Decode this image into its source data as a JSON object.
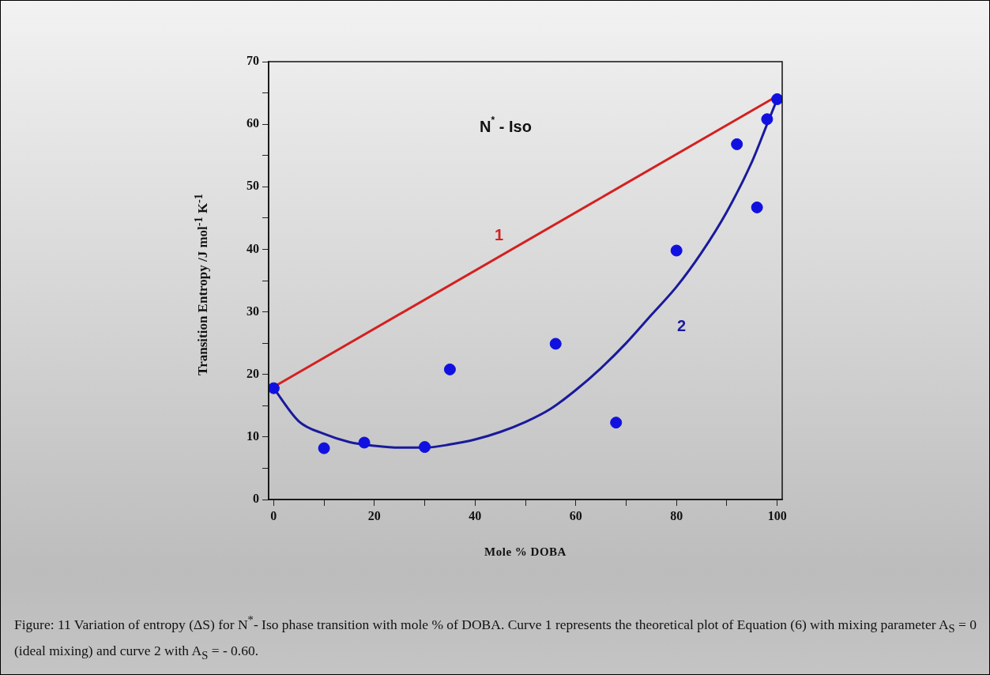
{
  "chart_data": {
    "type": "scatter",
    "xlabel": "Mole % DOBA",
    "ylabel": "Transition Entropy /J mol$^{-1}$ K$^{-1}$",
    "xlim": [
      -1,
      101
    ],
    "xticks": [
      0,
      {
        "value": 10,
        "label": null
      },
      20,
      {
        "value": 30,
        "label": null
      },
      40,
      {
        "value": 50,
        "label": null
      },
      60,
      {
        "value": 70,
        "label": null
      },
      80,
      {
        "value": 90,
        "label": null
      },
      100
    ],
    "ylim": [
      0,
      70
    ],
    "yticks": [
      0,
      {
        "value": 5,
        "label": null
      },
      10,
      {
        "value": 15,
        "label": null
      },
      20,
      {
        "value": 25,
        "label": null
      },
      30,
      {
        "value": 35,
        "label": null
      },
      40,
      {
        "value": 45,
        "label": null
      },
      50,
      {
        "value": 55,
        "label": null
      },
      60,
      {
        "value": 65,
        "label": null
      },
      70
    ],
    "grid": false,
    "legend": false,
    "series": [
      {
        "type": "line",
        "name": "1",
        "color": "#d42020",
        "marker": "none",
        "line_style": "solid",
        "x": [
          0,
          100
        ],
        "values": [
          18,
          64.5
        ]
      },
      {
        "type": "line",
        "name": "2",
        "color": "#1a1a9c",
        "marker": "none",
        "line_style": "solid",
        "x": [
          0,
          5,
          10,
          15,
          20,
          25,
          30,
          35,
          40,
          45,
          50,
          55,
          60,
          65,
          70,
          75,
          80,
          85,
          90,
          95,
          98,
          100
        ],
        "values": [
          17.8,
          12.5,
          10.5,
          9.2,
          8.6,
          8.3,
          8.3,
          8.8,
          9.6,
          10.8,
          12.4,
          14.5,
          17.5,
          21,
          25,
          29.5,
          34,
          39.5,
          46,
          54,
          60,
          64
        ]
      },
      {
        "color": "#1010e0",
        "marker": "circle",
        "x": [
          0,
          10,
          18,
          30,
          35,
          56,
          68,
          80,
          92,
          96,
          98,
          100
        ],
        "values": [
          17.8,
          8.2,
          9.1,
          8.4,
          20.8,
          24.9,
          12.3,
          39.8,
          56.8,
          46.7,
          60.8,
          64
        ]
      }
    ],
    "annotations": [
      "N$^{*}$ - Iso",
      "Figure: 11 Variation of entropy (ΔS) for N$^{*}$- Iso phase transition with mole % of DOBA. Curve 1 represents the theoretical plot of Equation (6) with mixing parameter A$_{S}$ = 0 (ideal mixing) and curve 2 with A$_{S}$ = - 0.60."
    ]
  }
}
